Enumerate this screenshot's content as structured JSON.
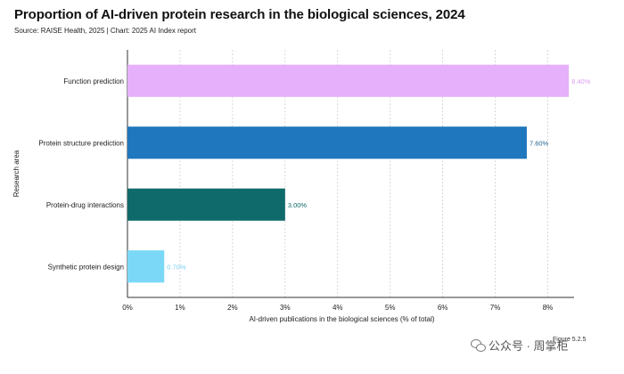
{
  "header": {
    "title": "Proportion of AI-driven protein research in the biological sciences, 2024",
    "subtitle": "Source: RAISE Health, 2025 | Chart: 2025 AI Index report"
  },
  "figure_label": "Figure 5.2.5",
  "watermark": {
    "text": "公众号 · 周掌柜",
    "icon": "wechat-icon"
  },
  "chart_data": {
    "type": "bar",
    "orientation": "horizontal",
    "title": "Proportion of AI-driven protein research in the biological sciences, 2024",
    "subtitle": "Source: RAISE Health, 2025 | Chart: 2025 AI Index report",
    "xlabel": "AI-driven publications in the biological sciences (% of total)",
    "ylabel": "Research area",
    "xlim": [
      0,
      8.5
    ],
    "xticks": [
      0,
      1,
      2,
      3,
      4,
      5,
      6,
      7,
      8
    ],
    "xtick_labels": [
      "0%",
      "1%",
      "2%",
      "3%",
      "4%",
      "5%",
      "6%",
      "7%",
      "8%"
    ],
    "grid": "vertical-dashed",
    "categories": [
      "Function prediction",
      "Protein structure prediction",
      "Protein-drug interactions",
      "Synthetic protein design"
    ],
    "values": [
      8.4,
      7.6,
      3.0,
      0.7
    ],
    "value_labels": [
      "8.40%",
      "7.60%",
      "3.00%",
      "0.70%"
    ],
    "colors": [
      "#e6b0fa",
      "#1f77bd",
      "#0f6b6b",
      "#7bd8f7"
    ],
    "label_colors": [
      "#d9a0ef",
      "#1f5f8f",
      "#0f6b6b",
      "#7bd0ef"
    ]
  }
}
